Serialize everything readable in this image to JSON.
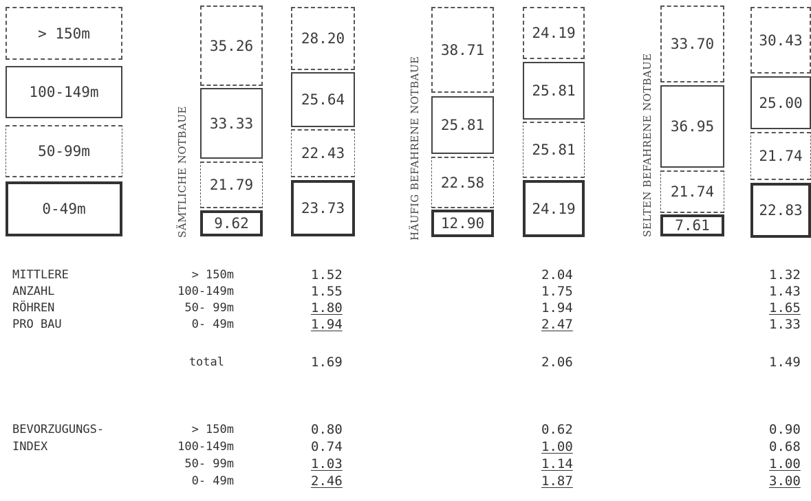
{
  "legend": [
    {
      "label": "> 150m",
      "style": "dashed"
    },
    {
      "label": "100-149m",
      "style": "solid"
    },
    {
      "label": "50-99m",
      "style": "dashdot"
    },
    {
      "label": "0-49m",
      "style": "thick"
    }
  ],
  "groups": [
    {
      "title": "SÄMTLICHE NOTBAUE",
      "left": [
        "35.26",
        "33.33",
        "21.79",
        "9.62"
      ],
      "right": [
        "28.20",
        "25.64",
        "22.43",
        "23.73"
      ]
    },
    {
      "title": "HÄUFIG BEFAHRENE NOTBAUE",
      "left": [
        "38.71",
        "25.81",
        "22.58",
        "12.90"
      ],
      "right": [
        "24.19",
        "25.81",
        "25.81",
        "24.19"
      ]
    },
    {
      "title": "SELTEN BEFAHRENE NOTBAUE",
      "left": [
        "33.70",
        "36.95",
        "21.74",
        "7.61"
      ],
      "right": [
        "30.43",
        "25.00",
        "21.74",
        "22.83"
      ]
    }
  ],
  "mittlere": {
    "label_lines": [
      "MITTLERE",
      "ANZAHL",
      "RÖHREN",
      "PRO BAU"
    ],
    "categories": [
      "> 150m",
      "100-149m",
      "50- 99m",
      "0- 49m"
    ],
    "total_label": "total",
    "columns": [
      {
        "values": [
          "1.52",
          "1.55",
          "1.80",
          "1.94"
        ],
        "total": "1.69"
      },
      {
        "values": [
          "2.04",
          "1.75",
          "1.94",
          "2.47"
        ],
        "total": "2.06"
      },
      {
        "values": [
          "1.32",
          "1.43",
          "1.65",
          "1.33"
        ],
        "total": "1.49"
      }
    ]
  },
  "index": {
    "label_lines": [
      "BEVORZUGUNGS-",
      "INDEX"
    ],
    "categories": [
      "> 150m",
      "100-149m",
      "50- 99m",
      "0- 49m"
    ],
    "columns": [
      {
        "values": [
          "0.80",
          "0.74",
          "1.03",
          "2.46"
        ]
      },
      {
        "values": [
          "0.62",
          "1.00",
          "1.14",
          "1.87"
        ]
      },
      {
        "values": [
          "0.90",
          "0.68",
          "1.00",
          "3.00"
        ]
      }
    ]
  }
}
